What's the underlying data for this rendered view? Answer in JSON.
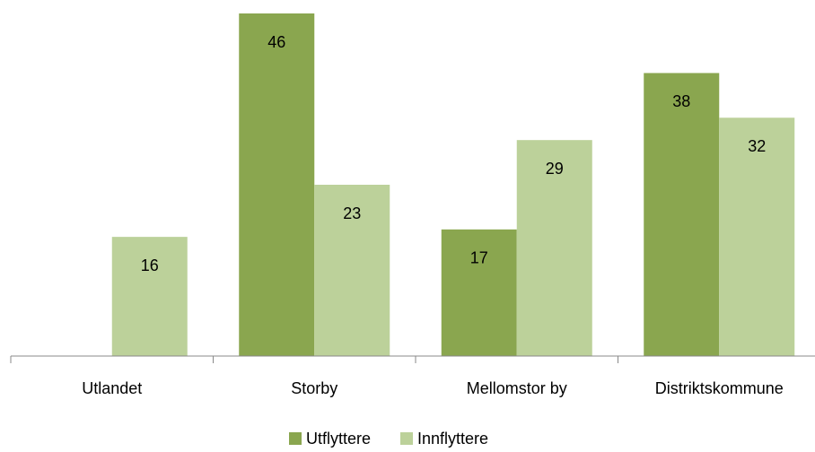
{
  "chart_data": {
    "type": "bar",
    "categories": [
      "Utlandet",
      "Storby",
      "Mellomstor by",
      "Distriktskommune"
    ],
    "series": [
      {
        "name": "Utflyttere",
        "color": "#8aa64f",
        "values": [
          null,
          46,
          17,
          38
        ]
      },
      {
        "name": "Innflyttere",
        "color": "#bcd19a",
        "values": [
          16,
          23,
          29,
          32
        ]
      }
    ],
    "ylim": [
      0,
      46
    ],
    "legend": "bottom"
  }
}
